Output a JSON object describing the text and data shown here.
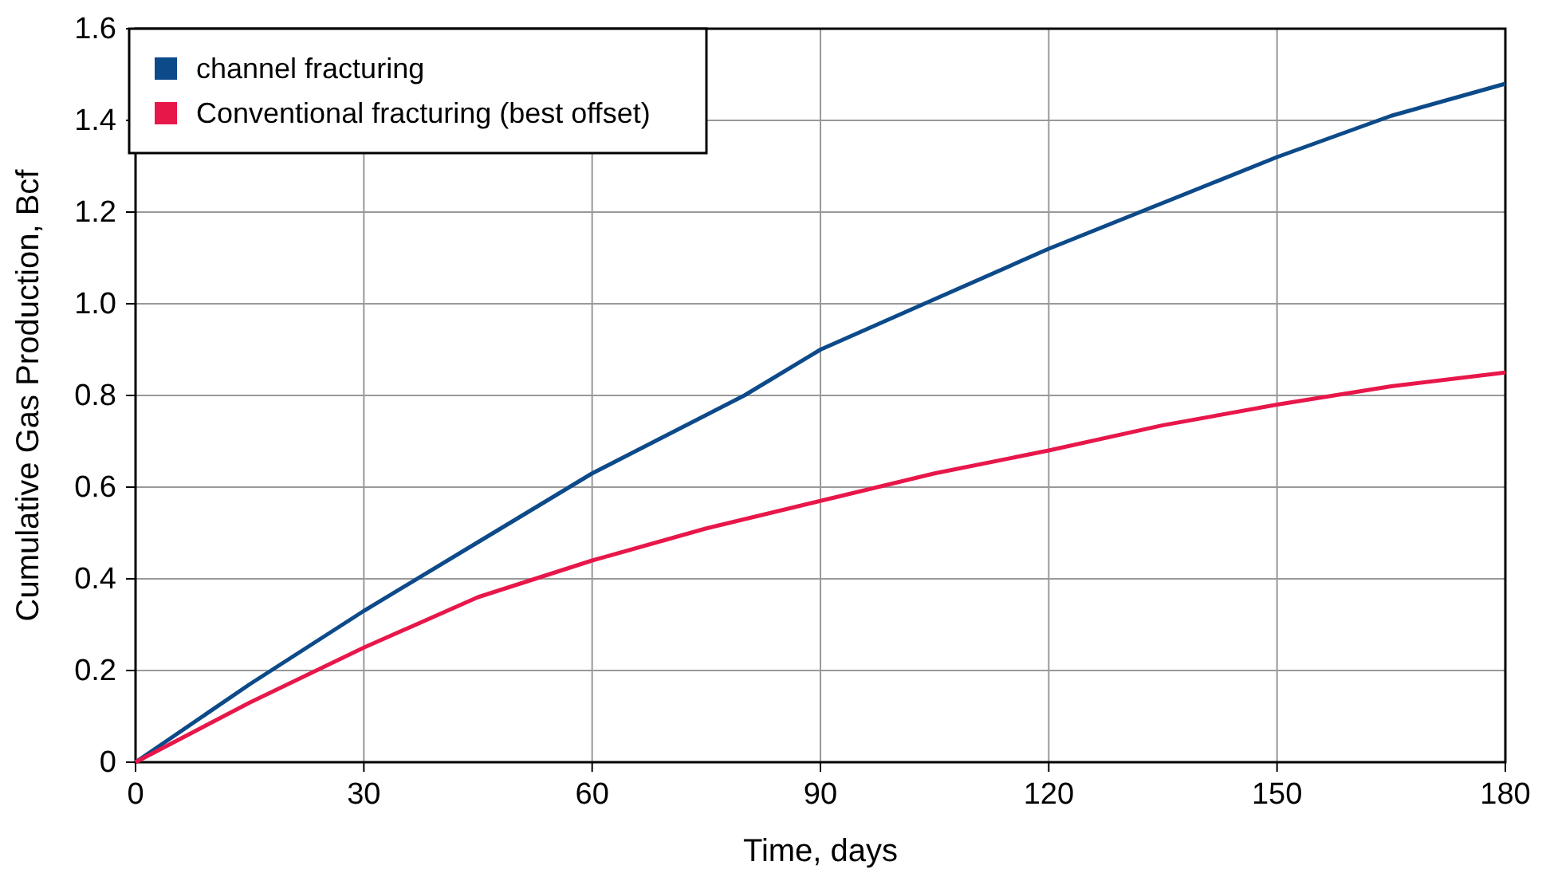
{
  "chart_data": {
    "type": "line",
    "xlabel": "Time, days",
    "ylabel": "Cumulative Gas Production, Bcf",
    "xlim": [
      0,
      180
    ],
    "xticks": [
      0,
      30,
      60,
      90,
      120,
      150,
      180
    ],
    "ylim": [
      0,
      1.6
    ],
    "yticks": [
      0,
      0.2,
      0.4,
      0.6,
      0.8,
      {
        "value": 1,
        "label": "1.0"
      },
      1.2,
      1.4,
      1.6
    ],
    "grid": true,
    "legend": "top left",
    "marker": "none",
    "line_style": "solid",
    "x": [
      0,
      15,
      30,
      45,
      60,
      80,
      90,
      105,
      120,
      135,
      150,
      165,
      180
    ],
    "series": [
      {
        "name": "channel fracturing",
        "color": "#0d4a8a",
        "values": [
          0,
          0.17,
          0.33,
          0.48,
          0.63,
          0.8,
          0.9,
          1.01,
          1.12,
          1.22,
          1.32,
          1.41,
          1.48
        ]
      },
      {
        "name": "Conventional fracturing (best offset)",
        "color": "#e8174a",
        "x": [
          0,
          15,
          30,
          45,
          60,
          75,
          90,
          105,
          120,
          135,
          150,
          165,
          180
        ],
        "values": [
          0,
          0.13,
          0.25,
          0.36,
          0.44,
          0.51,
          0.57,
          0.63,
          0.68,
          0.735,
          0.78,
          0.82,
          0.85
        ]
      }
    ]
  }
}
